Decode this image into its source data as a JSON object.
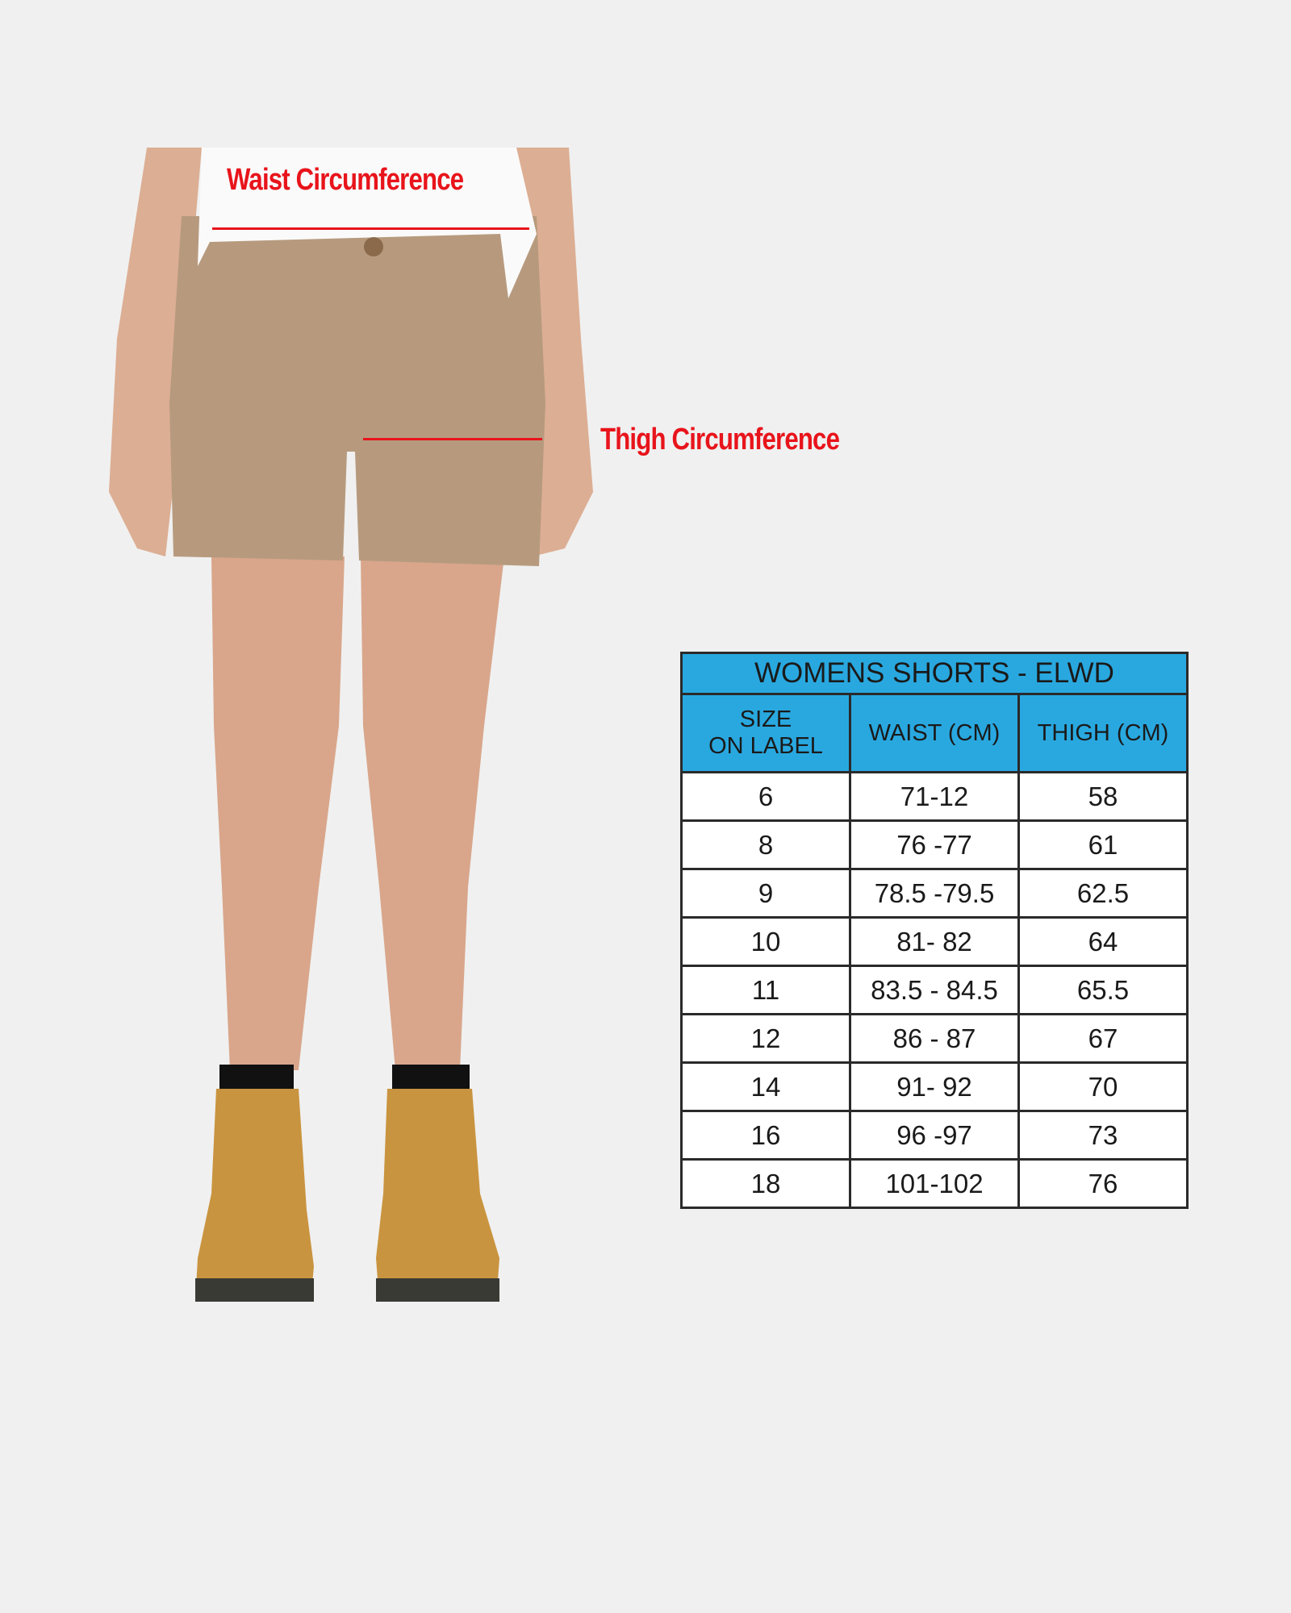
{
  "annotations": {
    "waist": "Waist Circumference",
    "thigh": "Thigh Circumference"
  },
  "colors": {
    "annotation": "#e8141b",
    "table_header": "#29a8e0",
    "background": "#f0f0f0"
  },
  "size_table": {
    "title": "WOMENS SHORTS - ELWD",
    "headers": [
      "SIZE ON LABEL",
      "WAIST (CM)",
      "THIGH (CM)"
    ],
    "header_size_lines": [
      "SIZE",
      "ON LABEL"
    ],
    "rows": [
      [
        "6",
        "71-12",
        "58"
      ],
      [
        "8",
        "76 -77",
        "61"
      ],
      [
        "9",
        "78.5 -79.5",
        "62.5"
      ],
      [
        "10",
        "81- 82",
        "64"
      ],
      [
        "11",
        "83.5 - 84.5",
        "65.5"
      ],
      [
        "12",
        "86 - 87",
        "67"
      ],
      [
        "14",
        "91- 92",
        "70"
      ],
      [
        "16",
        "96 -97",
        "73"
      ],
      [
        "18",
        "101-102",
        "76"
      ]
    ]
  }
}
